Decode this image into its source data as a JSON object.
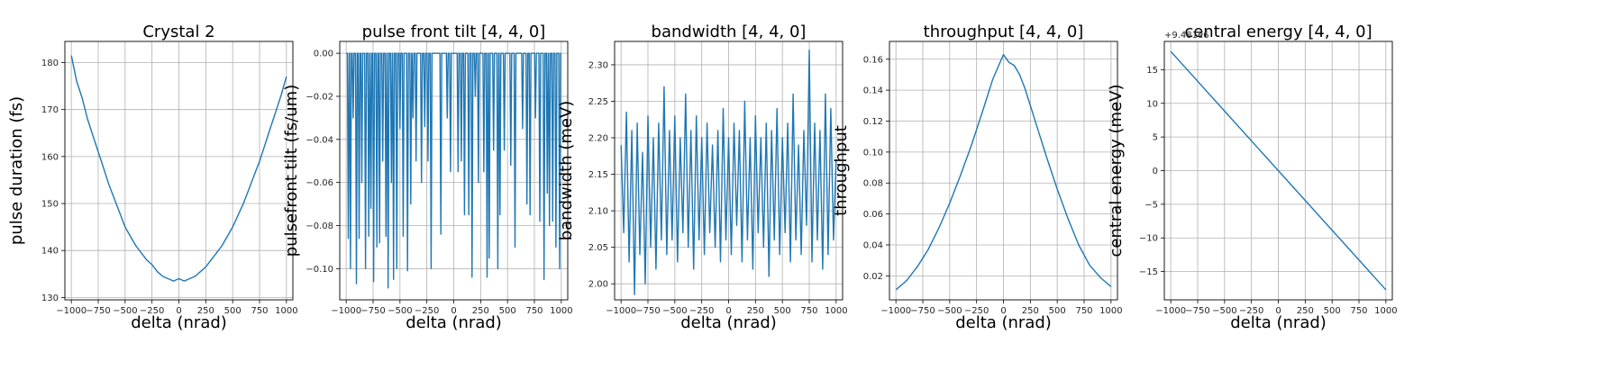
{
  "colors": {
    "line": "#1f77b4",
    "grid": "#b0b0b0",
    "frame": "#000000"
  },
  "chart_data": [
    {
      "type": "line",
      "title": "Crystal 2",
      "xlabel": "delta (nrad)",
      "ylabel": "pulse duration (fs)",
      "xlim": [
        -1060,
        1060
      ],
      "ylim": [
        129.5,
        184.5
      ],
      "xticks": [
        -1000,
        -750,
        -500,
        -250,
        0,
        250,
        500,
        750,
        1000
      ],
      "yticks": [
        130,
        140,
        150,
        160,
        170,
        180
      ],
      "ytick_labels": [
        "130",
        "140",
        "150",
        "160",
        "170",
        "180"
      ],
      "offset_text": "",
      "grid": true,
      "series": [
        {
          "x": [
            -1000,
            -950,
            -900,
            -850,
            -800,
            -750,
            -700,
            -650,
            -600,
            -550,
            -500,
            -450,
            -400,
            -350,
            -300,
            -250,
            -200,
            -150,
            -100,
            -50,
            0,
            50,
            100,
            150,
            200,
            250,
            300,
            350,
            400,
            450,
            500,
            550,
            600,
            650,
            700,
            750,
            800,
            850,
            900,
            950,
            1000
          ],
          "y": [
            181.5,
            176,
            172.5,
            168,
            164.5,
            161,
            157.5,
            154,
            151,
            148,
            145,
            143,
            141,
            139.5,
            138,
            137,
            135.5,
            134.5,
            134,
            133.5,
            134,
            133.5,
            134,
            134.5,
            135.5,
            136.5,
            138,
            139.5,
            141,
            143,
            145,
            147.5,
            150,
            153,
            156,
            159,
            162.5,
            166,
            169.5,
            173,
            177
          ]
        }
      ]
    },
    {
      "type": "line",
      "title": "pulse front tilt [4, 4, 0]",
      "xlabel": "delta (nrad)",
      "ylabel": "pulsefront tilt (fs/um)",
      "xlim": [
        -1060,
        1060
      ],
      "ylim": [
        -0.1145,
        0.0055
      ],
      "xticks": [
        -1000,
        -750,
        -500,
        -250,
        0,
        250,
        500,
        750,
        1000
      ],
      "yticks": [
        0.0,
        -0.02,
        -0.04,
        -0.06,
        -0.08,
        -0.1
      ],
      "ytick_labels": [
        "0.00",
        "−0.02",
        "−0.04",
        "−0.06",
        "−0.08",
        "−0.10"
      ],
      "offset_text": "",
      "grid": true,
      "series": [
        {
          "baseline": 0,
          "spikes_x": [
            -980,
            -960,
            -935,
            -905,
            -880,
            -855,
            -820,
            -790,
            -770,
            -745,
            -715,
            -690,
            -660,
            -630,
            -610,
            -580,
            -560,
            -530,
            -500,
            -470,
            -430,
            -400,
            -380,
            -350,
            -300,
            -270,
            -240,
            -210,
            -120,
            -60,
            -30,
            40,
            70,
            100,
            140,
            170,
            200,
            230,
            280,
            310,
            330,
            370,
            410,
            430,
            470,
            530,
            570,
            640,
            680,
            710,
            760,
            800,
            840,
            870,
            890,
            920,
            950,
            985
          ],
          "spikes_y": [
            -0.086,
            -0.1,
            -0.03,
            -0.107,
            -0.086,
            -0.06,
            -0.1,
            -0.085,
            -0.072,
            -0.106,
            -0.09,
            -0.088,
            -0.05,
            -0.085,
            -0.109,
            -0.06,
            -0.105,
            -0.1,
            -0.035,
            -0.085,
            -0.101,
            -0.07,
            -0.03,
            -0.05,
            -0.06,
            -0.034,
            -0.05,
            -0.1,
            -0.084,
            -0.03,
            -0.055,
            -0.055,
            -0.05,
            -0.075,
            -0.075,
            -0.104,
            -0.02,
            -0.06,
            -0.055,
            -0.104,
            -0.095,
            -0.045,
            -0.1,
            -0.075,
            -0.045,
            -0.052,
            -0.09,
            -0.035,
            -0.07,
            -0.075,
            -0.03,
            -0.078,
            -0.105,
            -0.065,
            -0.08,
            -0.078,
            -0.09,
            -0.1
          ]
        }
      ]
    },
    {
      "type": "line",
      "title": "bandwidth [4, 4, 0]",
      "xlabel": "delta (nrad)",
      "ylabel": "bandwidth (meV)",
      "xlim": [
        -1060,
        1060
      ],
      "ylim": [
        1.978,
        2.332
      ],
      "xticks": [
        -1000,
        -750,
        -500,
        -250,
        0,
        250,
        500,
        750,
        1000
      ],
      "yticks": [
        2.0,
        2.05,
        2.1,
        2.15,
        2.2,
        2.25,
        2.3
      ],
      "ytick_labels": [
        "2.00",
        "2.05",
        "2.10",
        "2.15",
        "2.20",
        "2.25",
        "2.30"
      ],
      "offset_text": "",
      "grid": true,
      "series": [
        {
          "x": [
            -1000,
            -975,
            -950,
            -925,
            -900,
            -875,
            -850,
            -825,
            -800,
            -775,
            -750,
            -725,
            -700,
            -675,
            -650,
            -625,
            -600,
            -575,
            -550,
            -525,
            -500,
            -475,
            -450,
            -425,
            -400,
            -375,
            -350,
            -325,
            -300,
            -275,
            -250,
            -225,
            -200,
            -175,
            -150,
            -125,
            -100,
            -75,
            -50,
            -25,
            0,
            25,
            50,
            75,
            100,
            125,
            150,
            175,
            200,
            225,
            250,
            275,
            300,
            325,
            350,
            375,
            400,
            425,
            450,
            475,
            500,
            525,
            550,
            575,
            600,
            625,
            650,
            675,
            700,
            725,
            750,
            775,
            800,
            825,
            850,
            875,
            900,
            925,
            950,
            975,
            1000
          ],
          "y": [
            2.19,
            2.07,
            2.235,
            2.03,
            2.21,
            1.985,
            2.22,
            2.04,
            2.18,
            2.0,
            2.23,
            2.05,
            2.2,
            2.02,
            2.22,
            2.06,
            2.27,
            2.04,
            2.21,
            2.06,
            2.23,
            2.03,
            2.2,
            2.07,
            2.26,
            2.05,
            2.21,
            2.02,
            2.23,
            2.06,
            2.2,
            2.04,
            2.22,
            2.07,
            2.19,
            2.05,
            2.21,
            2.03,
            2.24,
            2.06,
            2.2,
            2.04,
            2.22,
            2.08,
            2.21,
            2.03,
            2.25,
            2.06,
            2.2,
            2.02,
            2.23,
            2.07,
            2.2,
            2.05,
            2.22,
            2.01,
            2.21,
            2.06,
            2.24,
            2.04,
            2.2,
            2.07,
            2.22,
            2.03,
            2.26,
            2.06,
            2.19,
            2.04,
            2.21,
            2.08,
            2.32,
            2.03,
            2.22,
            2.06,
            2.21,
            2.02,
            2.26,
            2.04,
            2.24,
            2.06,
            2.17
          ]
        }
      ]
    },
    {
      "type": "line",
      "title": "throughput [4, 4, 0]",
      "xlabel": "delta (nrad)",
      "ylabel": "throughput",
      "xlim": [
        -1060,
        1060
      ],
      "ylim": [
        0.0045,
        0.1715
      ],
      "xticks": [
        -1000,
        -750,
        -500,
        -250,
        0,
        250,
        500,
        750,
        1000
      ],
      "yticks": [
        0.02,
        0.04,
        0.06,
        0.08,
        0.1,
        0.12,
        0.14,
        0.16
      ],
      "ytick_labels": [
        "0.02",
        "0.04",
        "0.06",
        "0.08",
        "0.10",
        "0.12",
        "0.14",
        "0.16"
      ],
      "offset_text": "",
      "grid": true,
      "series": [
        {
          "x": [
            -1000,
            -900,
            -800,
            -700,
            -600,
            -500,
            -400,
            -300,
            -200,
            -150,
            -100,
            -50,
            0,
            50,
            100,
            150,
            200,
            300,
            400,
            500,
            600,
            700,
            800,
            900,
            1000
          ],
          "y": [
            0.011,
            0.017,
            0.026,
            0.037,
            0.051,
            0.067,
            0.085,
            0.104,
            0.125,
            0.136,
            0.147,
            0.155,
            0.163,
            0.158,
            0.156,
            0.15,
            0.141,
            0.119,
            0.097,
            0.076,
            0.057,
            0.04,
            0.027,
            0.019,
            0.013
          ]
        }
      ]
    },
    {
      "type": "line",
      "title": "central energy [4, 4, 0]",
      "xlabel": "delta (nrad)",
      "ylabel": "central energy (meV)",
      "xlim": [
        -1060,
        1060
      ],
      "ylim": [
        -19.2,
        19.2
      ],
      "xticks": [
        -1000,
        -750,
        -500,
        -250,
        0,
        250,
        500,
        750,
        1000
      ],
      "yticks": [
        15,
        10,
        5,
        0,
        -5,
        -10,
        -15
      ],
      "ytick_labels": [
        "15",
        "10",
        "5",
        "0",
        "−5",
        "−10",
        "−15"
      ],
      "offset_text": "+9.481e6",
      "grid": true,
      "series": [
        {
          "x": [
            -1000,
            1000
          ],
          "y": [
            17.7,
            -17.7
          ]
        }
      ]
    }
  ]
}
